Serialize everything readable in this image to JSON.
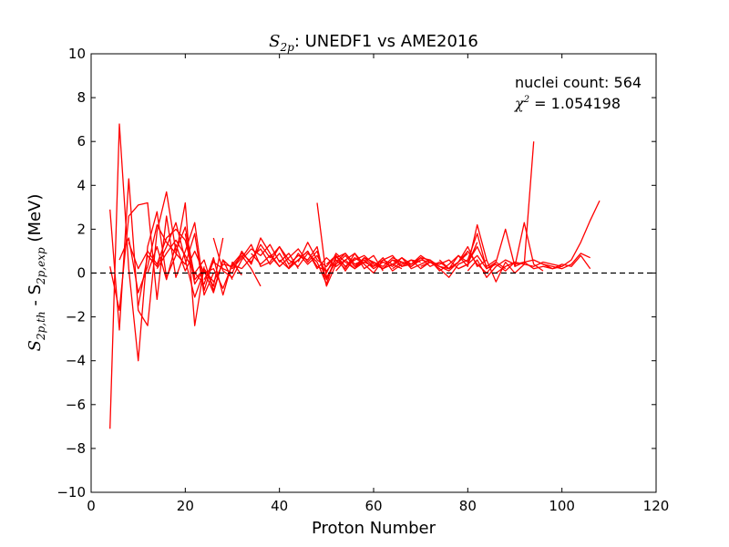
{
  "chart_data": {
    "type": "line",
    "title": {
      "symbol": "S",
      "symbol_sub": "2p",
      "suffix": ":  UNEDF1 vs AME2016"
    },
    "xlabel": "Proton Number",
    "ylabel": {
      "prefix": "S",
      "sub1": "2p,th",
      "middle": " - S",
      "sub2": "2p,exp",
      "suffix": " (MeV)"
    },
    "xlim": [
      0,
      120
    ],
    "ylim": [
      -10,
      10
    ],
    "xticks": [
      0,
      20,
      40,
      60,
      80,
      100,
      120
    ],
    "yticks": [
      -10,
      -8,
      -6,
      -4,
      -2,
      0,
      2,
      4,
      6,
      8,
      10
    ],
    "grid": false,
    "line_color": "#ff0000",
    "reference_line": {
      "y": 0,
      "style": "dashed",
      "color": "#000000"
    },
    "annotations": {
      "count_text": "nuclei count: 564",
      "chi_symbol": "χ",
      "chi_exp": "2",
      "chi_value": " = 1.054198"
    },
    "series": [
      {
        "x": [
          4,
          6,
          8,
          10,
          12,
          14,
          16,
          18,
          20,
          22,
          24
        ],
        "y": [
          -7.1,
          6.8,
          0.2,
          -4.0,
          1.2,
          2.8,
          -0.2,
          0.8,
          3.2,
          -2.4,
          0.3
        ]
      },
      {
        "x": [
          4,
          6,
          8,
          10,
          12,
          14,
          16,
          18,
          20,
          22
        ],
        "y": [
          2.9,
          -2.6,
          4.3,
          -1.7,
          -2.4,
          1.9,
          3.7,
          1.0,
          2.1,
          -0.2
        ]
      },
      {
        "x": [
          4,
          6,
          8,
          10,
          12,
          14,
          16,
          18,
          20,
          22,
          24,
          26
        ],
        "y": [
          0.3,
          -1.7,
          2.6,
          3.1,
          3.2,
          -1.2,
          2.6,
          -0.2,
          1.0,
          2.3,
          -0.8,
          0.6
        ]
      },
      {
        "x": [
          6,
          8,
          10,
          12,
          14,
          16,
          18,
          20,
          22,
          24,
          26
        ],
        "y": [
          0.6,
          1.6,
          -0.9,
          0.3,
          2.2,
          1.4,
          0.9,
          0.4,
          1.8,
          -1.0,
          0.0
        ]
      },
      {
        "x": [
          8,
          10,
          12,
          14,
          16,
          18,
          20,
          22,
          24,
          26,
          28
        ],
        "y": [
          1.4,
          0.2,
          1.0,
          0.4,
          1.6,
          2.0,
          1.5,
          -0.3,
          0.2,
          -0.6,
          1.6
        ]
      },
      {
        "x": [
          10,
          12,
          14,
          16,
          18,
          20,
          22,
          24,
          26,
          28,
          30
        ],
        "y": [
          -1.5,
          0.8,
          0.3,
          1.2,
          2.3,
          0.6,
          -1.1,
          0.1,
          -0.9,
          0.6,
          -0.3
        ]
      },
      {
        "x": [
          12,
          14,
          16,
          18,
          20,
          22,
          24,
          26,
          28,
          30,
          32
        ],
        "y": [
          0.0,
          1.2,
          -0.3,
          1.3,
          0.1,
          1.0,
          0.0,
          0.2,
          -0.7,
          0.4,
          0.2
        ]
      },
      {
        "x": [
          14,
          16,
          18,
          20,
          22,
          24,
          26,
          28,
          30,
          32
        ],
        "y": [
          0.2,
          0.9,
          1.5,
          0.8,
          0.0,
          -0.5,
          0.7,
          -1.0,
          0.5,
          -0.1
        ]
      },
      {
        "x": [
          20,
          22,
          24,
          26,
          28,
          30,
          32,
          34,
          36
        ],
        "y": [
          1.8,
          -0.5,
          0.2,
          -0.4,
          0.4,
          0.3,
          0.8,
          0.2,
          -0.6
        ]
      },
      {
        "x": [
          22,
          24,
          26,
          28,
          30,
          32,
          34,
          36,
          38
        ],
        "y": [
          0.0,
          0.6,
          -0.8,
          0.6,
          0.2,
          0.7,
          1.3,
          0.3,
          0.5
        ]
      },
      {
        "x": [
          24,
          26,
          28,
          30,
          32,
          34,
          36,
          38,
          40,
          42
        ],
        "y": [
          -0.3,
          0.5,
          0.2,
          0.0,
          1.0,
          0.4,
          1.6,
          0.9,
          0.3,
          0.7
        ]
      },
      {
        "x": [
          26,
          28,
          30,
          32,
          34,
          36,
          38,
          40,
          42,
          44
        ],
        "y": [
          1.6,
          0.1,
          -0.2,
          0.6,
          1.1,
          0.8,
          1.3,
          0.5,
          0.9,
          0.2
        ]
      },
      {
        "x": [
          30,
          32,
          34,
          36,
          38,
          40,
          42,
          44,
          46,
          48,
          50,
          52,
          54,
          56
        ],
        "y": [
          0.4,
          0.9,
          0.5,
          1.3,
          0.7,
          1.2,
          0.6,
          0.3,
          0.9,
          0.5,
          -0.5,
          0.8,
          0.3,
          0.7
        ]
      },
      {
        "x": [
          32,
          34,
          36,
          38,
          40,
          42,
          44,
          46,
          48,
          50,
          52,
          54,
          56,
          58
        ],
        "y": [
          0.2,
          0.7,
          1.1,
          0.4,
          0.9,
          0.2,
          0.6,
          1.0,
          0.3,
          0.1,
          0.6,
          0.2,
          0.9,
          0.4
        ]
      },
      {
        "x": [
          34,
          36,
          38,
          40,
          42,
          44,
          46,
          48,
          50,
          52,
          54,
          56,
          58,
          60
        ],
        "y": [
          0.9,
          0.4,
          0.8,
          0.3,
          0.7,
          1.1,
          0.5,
          1.0,
          -0.3,
          0.7,
          0.9,
          0.4,
          0.6,
          0.2
        ]
      },
      {
        "x": [
          38,
          40,
          42,
          44,
          46,
          48,
          50,
          52,
          54,
          56,
          58,
          60,
          62
        ],
        "y": [
          0.5,
          1.2,
          0.4,
          0.8,
          0.6,
          1.2,
          -0.6,
          0.4,
          0.8,
          0.3,
          0.5,
          0.8,
          0.1
        ]
      },
      {
        "x": [
          40,
          42,
          44,
          46,
          48,
          50,
          52,
          54,
          56,
          58,
          60,
          62,
          64,
          66
        ],
        "y": [
          0.6,
          0.2,
          0.9,
          0.4,
          0.8,
          0.0,
          0.9,
          0.5,
          0.2,
          0.7,
          0.3,
          0.6,
          0.4,
          0.2
        ]
      },
      {
        "x": [
          42,
          44,
          46,
          48,
          50,
          52,
          54,
          56,
          58,
          60,
          62,
          64,
          66,
          68
        ],
        "y": [
          0.3,
          0.6,
          1.0,
          0.2,
          0.7,
          0.3,
          0.6,
          0.9,
          0.2,
          0.5,
          0.3,
          0.7,
          0.5,
          0.4
        ]
      },
      {
        "x": [
          44,
          46,
          48,
          50,
          52,
          54,
          56,
          58,
          60,
          62,
          64,
          66,
          68,
          70
        ],
        "y": [
          0.5,
          1.4,
          0.6,
          0.3,
          0.8,
          0.1,
          0.7,
          0.4,
          0.0,
          0.6,
          0.8,
          0.3,
          0.6,
          0.5
        ]
      },
      {
        "x": [
          48,
          50,
          52,
          54,
          56,
          58,
          60,
          62,
          64,
          66,
          68,
          70,
          72,
          74
        ],
        "y": [
          3.2,
          -0.2,
          0.5,
          0.9,
          0.4,
          0.6,
          0.2,
          0.5,
          0.3,
          0.7,
          0.4,
          0.8,
          0.5,
          0.3
        ]
      },
      {
        "x": [
          50,
          52,
          54,
          56,
          58,
          60,
          62,
          64,
          66,
          68,
          70,
          72,
          74,
          76,
          78,
          80
        ],
        "y": [
          0.4,
          0.8,
          0.3,
          0.6,
          0.8,
          0.4,
          0.2,
          0.6,
          0.5,
          0.3,
          0.7,
          0.6,
          0.3,
          0.1,
          0.5,
          0.9
        ]
      },
      {
        "x": [
          52,
          54,
          56,
          58,
          60,
          62,
          64,
          66,
          68,
          70,
          72,
          74,
          76,
          78,
          80,
          82
        ],
        "y": [
          0.1,
          0.6,
          0.2,
          0.5,
          0.3,
          0.7,
          0.1,
          0.4,
          0.6,
          0.2,
          0.5,
          0.4,
          0.6,
          0.2,
          0.4,
          1.4
        ]
      },
      {
        "x": [
          56,
          58,
          60,
          62,
          64,
          66,
          68,
          70,
          72,
          74,
          76,
          78,
          80,
          82,
          84
        ],
        "y": [
          0.3,
          0.7,
          0.5,
          0.2,
          0.6,
          0.3,
          0.4,
          0.7,
          0.3,
          0.5,
          0.2,
          0.8,
          0.3,
          2.2,
          0.6
        ]
      },
      {
        "x": [
          60,
          62,
          64,
          66,
          68,
          70,
          72,
          74,
          76,
          78,
          80,
          82,
          84,
          86
        ],
        "y": [
          0.5,
          0.2,
          0.4,
          0.7,
          0.2,
          0.4,
          0.6,
          0.1,
          0.4,
          0.8,
          0.5,
          1.2,
          0.3,
          0.6
        ]
      },
      {
        "x": [
          64,
          66,
          68,
          70,
          72,
          74,
          76,
          78,
          80,
          82,
          84,
          86,
          88
        ],
        "y": [
          0.2,
          0.5,
          0.3,
          0.6,
          0.5,
          0.3,
          0.2,
          0.5,
          1.0,
          0.4,
          0.0,
          0.5,
          0.2
        ]
      },
      {
        "x": [
          70,
          72,
          74,
          76,
          78,
          80,
          82,
          84,
          86,
          88,
          90
        ],
        "y": [
          0.3,
          0.5,
          0.2,
          -0.2,
          0.4,
          0.6,
          1.8,
          0.2,
          0.4,
          0.1,
          0.5
        ]
      },
      {
        "x": [
          74,
          76,
          78,
          80,
          82,
          84,
          86,
          88,
          90,
          92,
          94
        ],
        "y": [
          0.6,
          0.2,
          0.5,
          1.2,
          0.3,
          0.6,
          -0.4,
          0.5,
          0.0,
          0.4,
          6.0
        ]
      },
      {
        "x": [
          78,
          80,
          82,
          84,
          86,
          88,
          90,
          92,
          94,
          96
        ],
        "y": [
          0.2,
          0.4,
          0.8,
          0.2,
          0.5,
          2.0,
          0.3,
          2.3,
          0.4,
          0.1
        ]
      },
      {
        "x": [
          80,
          82,
          84,
          86,
          88,
          90,
          92,
          94,
          96,
          98,
          100
        ],
        "y": [
          0.1,
          0.6,
          -0.2,
          0.3,
          0.6,
          0.4,
          0.5,
          0.2,
          0.3,
          0.2,
          0.3
        ]
      },
      {
        "x": [
          86,
          88,
          90,
          92,
          94,
          96,
          98,
          100,
          102,
          104,
          106,
          108
        ],
        "y": [
          0.0,
          0.3,
          0.5,
          0.4,
          0.3,
          0.5,
          0.4,
          0.3,
          0.6,
          1.4,
          2.4,
          3.3
        ]
      },
      {
        "x": [
          90,
          92,
          94,
          96,
          98,
          100,
          102,
          104,
          106
        ],
        "y": [
          0.3,
          0.5,
          0.6,
          0.4,
          0.2,
          0.4,
          0.3,
          0.8,
          0.2
        ]
      },
      {
        "x": [
          96,
          98,
          100,
          102,
          104,
          106
        ],
        "y": [
          0.4,
          0.3,
          0.2,
          0.4,
          0.9,
          0.7
        ]
      }
    ]
  }
}
